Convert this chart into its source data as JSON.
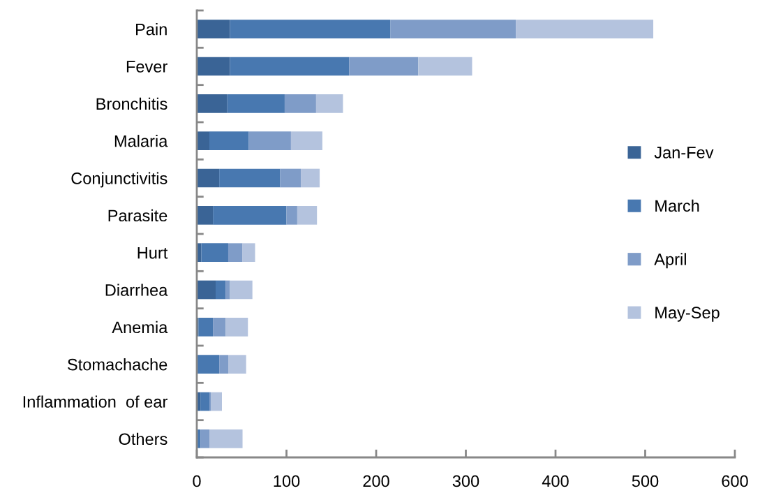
{
  "chart_data": {
    "type": "bar",
    "orientation": "horizontal",
    "stacked": true,
    "categories": [
      "Pain",
      "Fever",
      "Bronchitis",
      "Malaria",
      "Conjunctivitis",
      "Parasite",
      "Hurt",
      "Diarrhea",
      "Anemia",
      "Stomachache",
      "Inflammation  of ear",
      "Others"
    ],
    "series": [
      {
        "name": "Jan-Fev",
        "color": "#3a6496",
        "values": [
          37,
          37,
          34,
          14,
          25,
          18,
          5,
          21,
          2,
          0,
          4,
          0
        ]
      },
      {
        "name": "March",
        "color": "#4878b0",
        "values": [
          179,
          133,
          64,
          44,
          68,
          82,
          30,
          11,
          16,
          25,
          10,
          4
        ]
      },
      {
        "name": "April",
        "color": "#7f9cc8",
        "values": [
          140,
          77,
          35,
          47,
          23,
          12,
          16,
          5,
          14,
          10,
          2,
          10
        ]
      },
      {
        "name": "May-Sep",
        "color": "#b4c3de",
        "values": [
          153,
          60,
          30,
          35,
          21,
          22,
          14,
          25,
          25,
          20,
          12,
          37
        ]
      }
    ],
    "xlim": [
      0,
      600
    ],
    "xticks": [
      0,
      100,
      200,
      300,
      400,
      500,
      600
    ],
    "grid": false,
    "legend": "right"
  }
}
